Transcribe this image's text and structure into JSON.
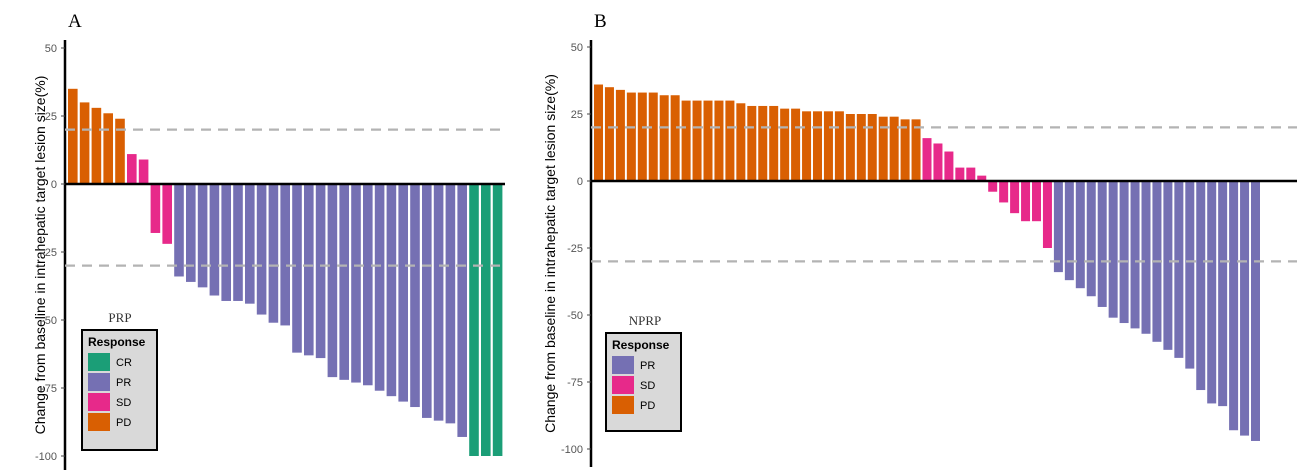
{
  "colors": {
    "CR": "#1b9e77",
    "PR": "#7570b3",
    "SD": "#e7298a",
    "PD": "#d95f02",
    "reference_line": "#b3b3b3",
    "legend_bg": "#d9d9d9"
  },
  "chart_data": [
    {
      "type": "bar",
      "panel_label": "A",
      "group_title": "PRP",
      "ylabel": "Change from baseline in intrahepatic target lesion size(%)",
      "ylim": [
        -100,
        50
      ],
      "yticks": [
        50,
        25,
        0,
        -25,
        -50,
        -75,
        -100
      ],
      "reference_lines": [
        20,
        -30
      ],
      "grid": false,
      "legend": {
        "title": "Response",
        "position": "bottom-left",
        "items": [
          "CR",
          "PR",
          "SD",
          "PD"
        ]
      },
      "values": [
        35,
        30,
        28,
        26,
        24,
        11,
        9,
        -18,
        -22,
        -34,
        -36,
        -38,
        -41,
        -43,
        -43,
        -44,
        -48,
        -51,
        -52,
        -62,
        -63,
        -64,
        -71,
        -72,
        -73,
        -74,
        -76,
        -78,
        -80,
        -82,
        -86,
        -87,
        -88,
        -93,
        -100,
        -100,
        -100
      ],
      "responses": [
        "PD",
        "PD",
        "PD",
        "PD",
        "PD",
        "SD",
        "SD",
        "SD",
        "SD",
        "PR",
        "PR",
        "PR",
        "PR",
        "PR",
        "PR",
        "PR",
        "PR",
        "PR",
        "PR",
        "PR",
        "PR",
        "PR",
        "PR",
        "PR",
        "PR",
        "PR",
        "PR",
        "PR",
        "PR",
        "PR",
        "PR",
        "PR",
        "PR",
        "PR",
        "CR",
        "CR",
        "CR"
      ]
    },
    {
      "type": "bar",
      "panel_label": "B",
      "group_title": "NPRP",
      "ylabel": "Change from baseline in intrahepatic target lesion size(%)",
      "ylim": [
        -100,
        50
      ],
      "yticks": [
        50,
        25,
        0,
        -25,
        -50,
        -75,
        -100
      ],
      "reference_lines": [
        20,
        -30
      ],
      "grid": false,
      "legend": {
        "title": "Response",
        "position": "bottom-left",
        "items": [
          "PR",
          "SD",
          "PD"
        ]
      },
      "values": [
        36,
        35,
        34,
        33,
        33,
        33,
        32,
        32,
        30,
        30,
        30,
        30,
        30,
        29,
        28,
        28,
        28,
        27,
        27,
        26,
        26,
        26,
        26,
        25,
        25,
        25,
        24,
        24,
        23,
        23,
        16,
        14,
        11,
        5,
        5,
        2,
        -4,
        -8,
        -12,
        -15,
        -15,
        -25,
        -34,
        -37,
        -40,
        -43,
        -47,
        -51,
        -53,
        -55,
        -57,
        -60,
        -63,
        -66,
        -70,
        -78,
        -83,
        -84,
        -93,
        -95,
        -97
      ],
      "responses": [
        "PD",
        "PD",
        "PD",
        "PD",
        "PD",
        "PD",
        "PD",
        "PD",
        "PD",
        "PD",
        "PD",
        "PD",
        "PD",
        "PD",
        "PD",
        "PD",
        "PD",
        "PD",
        "PD",
        "PD",
        "PD",
        "PD",
        "PD",
        "PD",
        "PD",
        "PD",
        "PD",
        "PD",
        "PD",
        "PD",
        "SD",
        "SD",
        "SD",
        "SD",
        "SD",
        "SD",
        "SD",
        "SD",
        "SD",
        "SD",
        "SD",
        "SD",
        "PR",
        "PR",
        "PR",
        "PR",
        "PR",
        "PR",
        "PR",
        "PR",
        "PR",
        "PR",
        "PR",
        "PR",
        "PR",
        "PR",
        "PR",
        "PR",
        "PR",
        "PR",
        "PR"
      ]
    }
  ]
}
